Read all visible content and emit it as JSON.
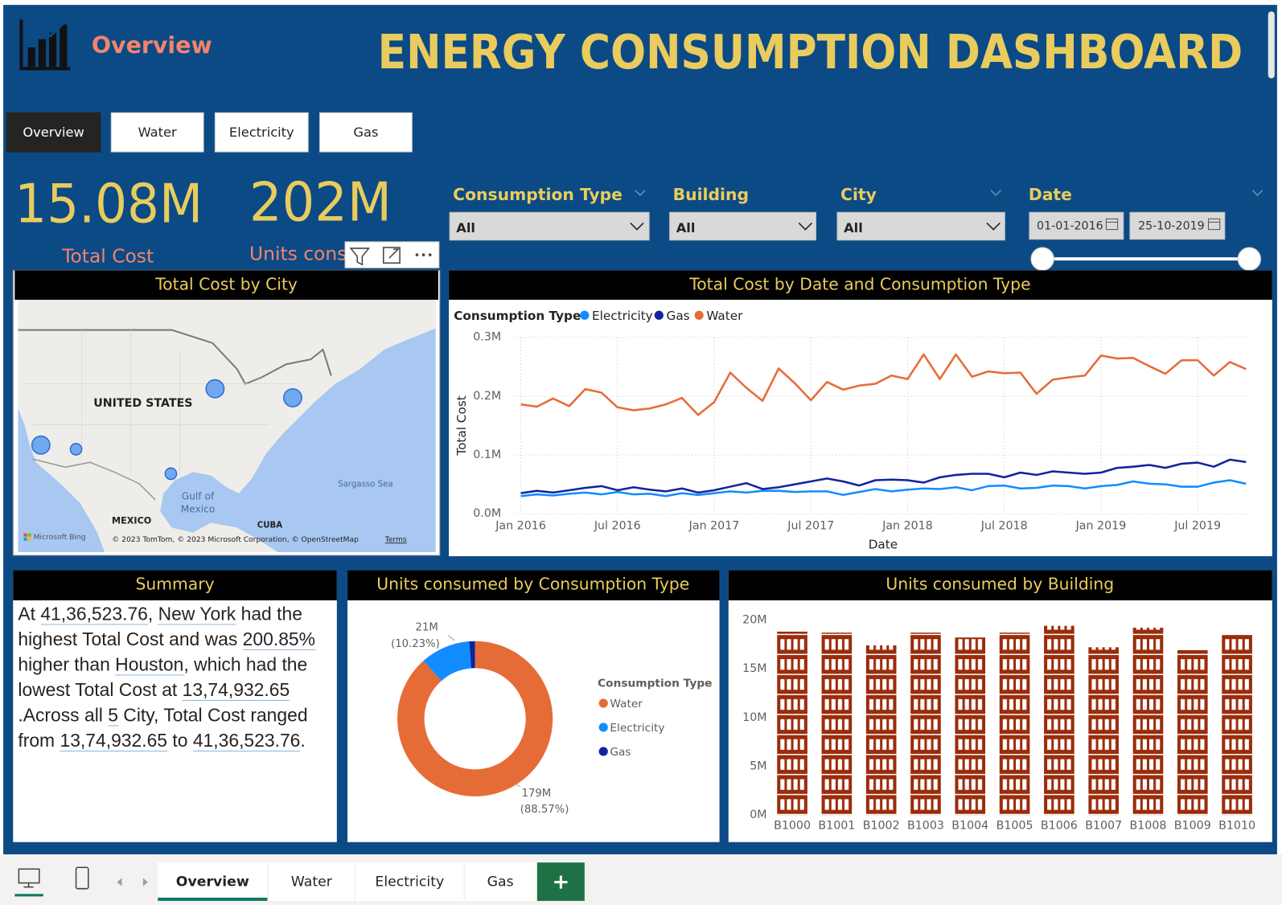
{
  "header": {
    "page_name": "Overview",
    "title": "ENERGY CONSUMPTION DASHBOARD"
  },
  "nav_buttons": [
    "Overview",
    "Water",
    "Electricity",
    "Gas"
  ],
  "kpis": [
    {
      "value": "15.08M",
      "label": "Total Cost"
    },
    {
      "value": "202M",
      "label": "Units consumed"
    }
  ],
  "filters": [
    {
      "label": "Consumption Type",
      "selection": "All"
    },
    {
      "label": "Building",
      "selection": "All"
    },
    {
      "label": "City",
      "selection": "All"
    },
    {
      "label": "Date",
      "start": "01-01-2016",
      "end": "25-10-2019"
    }
  ],
  "map": {
    "title": "Total Cost by City",
    "labels": [
      "UNITED STATES",
      "MEXICO",
      "CUBA",
      "Gulf of",
      "Mexico",
      "Sargasso Sea"
    ],
    "attribution": [
      "Microsoft Bing",
      "© 2023 TomTom, © 2023 Microsoft Corporation, © OpenStreetMap",
      "Terms"
    ]
  },
  "summary": {
    "title": "Summary",
    "segments": [
      {
        "text": "At ",
        "highlight": false
      },
      {
        "text": "41,36,523.76",
        "highlight": true
      },
      {
        "text": ", ",
        "highlight": false
      },
      {
        "text": "New York",
        "highlight": true
      },
      {
        "text": " had the highest Total Cost and was ",
        "highlight": false
      },
      {
        "text": "200.85%",
        "highlight": true
      },
      {
        "text": " higher than ",
        "highlight": false
      },
      {
        "text": "Houston",
        "highlight": true
      },
      {
        "text": ", which had the lowest Total Cost at ",
        "highlight": false
      },
      {
        "text": "13,74,932.65",
        "highlight": true
      },
      {
        "text": " .Across all ",
        "highlight": false
      },
      {
        "text": "5",
        "highlight": true
      },
      {
        "text": " City, Total Cost ranged from ",
        "highlight": false
      },
      {
        "text": "13,74,932.65",
        "highlight": true
      },
      {
        "text": " to ",
        "highlight": false
      },
      {
        "text": "41,36,523.76",
        "highlight": true
      },
      {
        "text": ".",
        "highlight": false
      }
    ]
  },
  "chart_data": [
    {
      "type": "line",
      "title": "Total Cost by Date and Consumption Type",
      "legend_title": "Consumption Type",
      "x_label": "Date",
      "y_label": "Total Cost",
      "x": [
        "2016-01",
        "2016-02",
        "2016-03",
        "2016-04",
        "2016-05",
        "2016-06",
        "2016-07",
        "2016-08",
        "2016-09",
        "2016-10",
        "2016-11",
        "2016-12",
        "2017-01",
        "2017-02",
        "2017-03",
        "2017-04",
        "2017-05",
        "2017-06",
        "2017-07",
        "2017-08",
        "2017-09",
        "2017-10",
        "2017-11",
        "2017-12",
        "2018-01",
        "2018-02",
        "2018-03",
        "2018-04",
        "2018-05",
        "2018-06",
        "2018-07",
        "2018-08",
        "2018-09",
        "2018-10",
        "2018-11",
        "2018-12",
        "2019-01",
        "2019-02",
        "2019-03",
        "2019-04",
        "2019-05",
        "2019-06",
        "2019-07",
        "2019-08",
        "2019-09",
        "2019-10"
      ],
      "xticks": [
        {
          "value": "2016-01",
          "label": "Jan 2016"
        },
        {
          "value": "2016-07",
          "label": "Jul 2016"
        },
        {
          "value": "2017-01",
          "label": "Jan 2017"
        },
        {
          "value": "2017-07",
          "label": "Jul 2017"
        },
        {
          "value": "2018-01",
          "label": "Jan 2018"
        },
        {
          "value": "2018-07",
          "label": "Jul 2018"
        },
        {
          "value": "2019-01",
          "label": "Jan 2019"
        },
        {
          "value": "2019-07",
          "label": "Jul 2019"
        }
      ],
      "ylim": [
        0,
        300000
      ],
      "yticks": [
        {
          "value": 0,
          "label": "0.0M"
        },
        {
          "value": 100000,
          "label": "0.1M"
        },
        {
          "value": 200000,
          "label": "0.2M"
        },
        {
          "value": 300000,
          "label": "0.3M"
        }
      ],
      "grid": true,
      "series": [
        {
          "name": "Electricity",
          "color": "#118dff",
          "values": [
            30000,
            33000,
            31000,
            34000,
            36000,
            33000,
            37000,
            33000,
            34000,
            30000,
            35000,
            32000,
            35000,
            38000,
            36000,
            39000,
            39000,
            37000,
            38000,
            38000,
            32000,
            37000,
            42000,
            38000,
            41000,
            43000,
            42000,
            45000,
            40000,
            47000,
            48000,
            43000,
            44000,
            48000,
            47000,
            43000,
            47000,
            49000,
            55000,
            51000,
            50000,
            46000,
            46000,
            53000,
            57000,
            51000
          ]
        },
        {
          "name": "Gas",
          "color": "#12239e",
          "values": [
            35000,
            39000,
            36000,
            40000,
            44000,
            47000,
            40000,
            45000,
            41000,
            38000,
            43000,
            36000,
            40000,
            46000,
            52000,
            42000,
            45000,
            50000,
            55000,
            60000,
            55000,
            48000,
            57000,
            58000,
            57000,
            53000,
            62000,
            66000,
            68000,
            68000,
            62000,
            70000,
            66000,
            72000,
            70000,
            68000,
            70000,
            78000,
            80000,
            83000,
            78000,
            85000,
            87000,
            80000,
            92000,
            88000
          ]
        },
        {
          "name": "Water",
          "color": "#e66c37",
          "values": [
            186000,
            182000,
            196000,
            183000,
            212000,
            206000,
            181000,
            176000,
            179000,
            186000,
            197000,
            168000,
            190000,
            240000,
            214000,
            192000,
            247000,
            222000,
            193000,
            224000,
            211000,
            218000,
            221000,
            235000,
            229000,
            271000,
            229000,
            271000,
            233000,
            242000,
            239000,
            240000,
            204000,
            228000,
            232000,
            235000,
            269000,
            264000,
            265000,
            251000,
            238000,
            261000,
            261000,
            235000,
            258000,
            246000
          ]
        }
      ]
    },
    {
      "type": "donut",
      "title": "Units consumed by Consumption Type",
      "legend_title": "Consumption Type",
      "categories": [
        "Water",
        "Electricity",
        "Gas"
      ],
      "colors": [
        "#e66c37",
        "#118dff",
        "#12239e"
      ],
      "values": [
        179000000,
        21000000,
        2400000
      ],
      "value_labels": [
        "179M",
        "21M",
        null
      ],
      "percent_labels": [
        "(88.57%)",
        "(10.23%)",
        null
      ]
    },
    {
      "type": "bar",
      "title": "Units consumed by Building",
      "categories": [
        "B1000",
        "B1001",
        "B1002",
        "B1003",
        "B1004",
        "B1005",
        "B1006",
        "B1007",
        "B1008",
        "B1009",
        "B1010"
      ],
      "values": [
        18800000,
        18700000,
        17400000,
        18700000,
        18200000,
        18700000,
        19400000,
        17200000,
        19200000,
        16900000,
        18500000
      ],
      "color": "#9b2c0b",
      "ylim": [
        0,
        20000000
      ],
      "yticks": [
        {
          "value": 0,
          "label": "0M"
        },
        {
          "value": 5000000,
          "label": "5M"
        },
        {
          "value": 10000000,
          "label": "10M"
        },
        {
          "value": 15000000,
          "label": "15M"
        },
        {
          "value": 20000000,
          "label": "20M"
        }
      ]
    }
  ],
  "page_tabs": [
    "Overview",
    "Water",
    "Electricity",
    "Gas"
  ]
}
